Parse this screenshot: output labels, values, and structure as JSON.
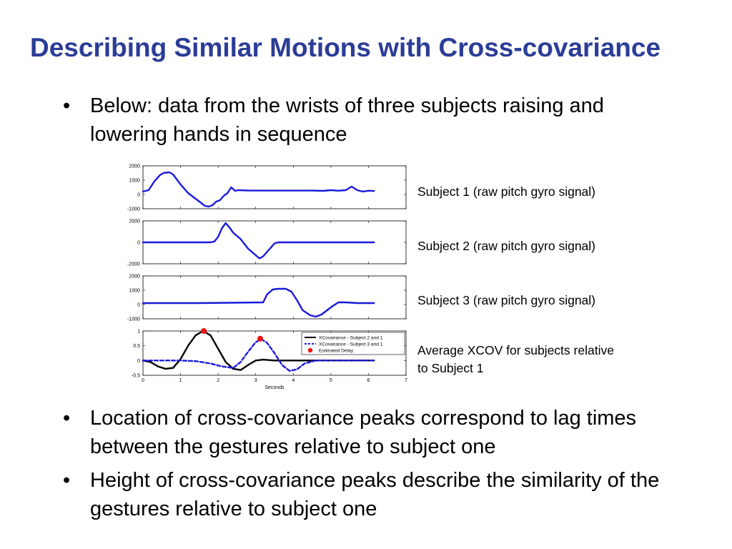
{
  "slide": {
    "title": "Describing Similar Motions with Cross-covariance",
    "bullets": [
      {
        "mark": "•",
        "text": "Below: data from the wrists of three subjects raising and lowering hands in sequence"
      },
      {
        "mark": "•",
        "text": "Location of cross-covariance peaks correspond to lag times between the gestures relative to subject one"
      },
      {
        "mark": "•",
        "text": "Height of cross-covariance peaks describe the similarity of the gestures relative to subject one"
      }
    ],
    "captions": [
      "Subject 1 (raw pitch gyro signal)",
      "Subject 2 (raw pitch gyro signal)",
      "Subject 3 (raw pitch gyro signal)",
      "Average XCOV for subjects relative to Subject 1"
    ]
  },
  "colors": {
    "title": "#2b3d97",
    "blue_trace": "#1a1adb",
    "black_trace": "#000000",
    "delay_marker": "#ee1111"
  },
  "chart_data": [
    {
      "type": "line",
      "title": "",
      "yticks": [
        "2000",
        "1000",
        "0",
        "-1000"
      ],
      "ylim": [
        -1000,
        2000
      ],
      "xlim": [
        0,
        7
      ],
      "series": [
        {
          "color": "#1a1adb",
          "x": [
            0,
            0.15,
            0.3,
            0.45,
            0.55,
            0.7,
            0.8,
            1.0,
            1.2,
            1.4,
            1.55,
            1.65,
            1.75,
            1.85,
            1.95,
            2.05,
            2.15,
            2.25,
            2.35,
            2.45,
            2.55,
            2.8,
            3.5,
            4.5,
            4.8,
            5.0,
            5.2,
            5.4,
            5.55,
            5.7,
            5.85,
            6.0,
            6.15
          ],
          "y": [
            200,
            300,
            900,
            1350,
            1500,
            1550,
            1400,
            700,
            100,
            -300,
            -600,
            -800,
            -850,
            -750,
            -500,
            -400,
            -100,
            100,
            500,
            250,
            300,
            270,
            270,
            270,
            250,
            300,
            260,
            300,
            550,
            300,
            200,
            260,
            240
          ]
        }
      ]
    },
    {
      "type": "line",
      "title": "",
      "yticks": [
        "2000",
        "0",
        "-2000"
      ],
      "ylim": [
        -2000,
        2000
      ],
      "xlim": [
        0,
        7
      ],
      "series": [
        {
          "color": "#1a1adb",
          "x": [
            0,
            1.0,
            1.8,
            1.9,
            2.0,
            2.1,
            2.2,
            2.3,
            2.4,
            2.6,
            2.8,
            3.0,
            3.1,
            3.2,
            3.35,
            3.5,
            3.6,
            4.0,
            5.5,
            6.15
          ],
          "y": [
            0,
            0,
            0,
            80,
            500,
            1300,
            1800,
            1400,
            900,
            300,
            -600,
            -1200,
            -1500,
            -1300,
            -700,
            -100,
            0,
            0,
            0,
            0
          ]
        }
      ]
    },
    {
      "type": "line",
      "title": "",
      "yticks": [
        "2000",
        "1000",
        "0",
        "-1000"
      ],
      "ylim": [
        -1000,
        2000
      ],
      "xlim": [
        0,
        7
      ],
      "series": [
        {
          "color": "#1a1adb",
          "x": [
            0,
            1.5,
            3.2,
            3.3,
            3.45,
            3.6,
            3.8,
            3.95,
            4.1,
            4.25,
            4.45,
            4.6,
            4.75,
            4.9,
            5.05,
            5.2,
            5.4,
            5.7,
            6.15
          ],
          "y": [
            100,
            100,
            150,
            700,
            1050,
            1100,
            1100,
            900,
            300,
            -400,
            -750,
            -850,
            -700,
            -400,
            -100,
            150,
            150,
            100,
            100
          ]
        }
      ]
    },
    {
      "type": "line",
      "title": "",
      "xlabel": "Seconds",
      "xlim": [
        0,
        7
      ],
      "ylim": [
        -0.5,
        1
      ],
      "xticks": [
        "0",
        "1",
        "2",
        "3",
        "4",
        "5",
        "6",
        "7"
      ],
      "yticks": [
        "1",
        "0.5",
        "0",
        "-0.5"
      ],
      "legend_position": "top-right",
      "series": [
        {
          "name": "XCovariance - Subject 2 and 1",
          "color": "#000000",
          "style": "solid",
          "x": [
            0,
            0.2,
            0.4,
            0.6,
            0.8,
            1.0,
            1.2,
            1.4,
            1.6,
            1.8,
            2.0,
            2.2,
            2.4,
            2.6,
            2.8,
            3.0,
            3.2,
            3.5,
            4.0,
            5.0,
            6.15
          ],
          "y": [
            0,
            -0.05,
            -0.2,
            -0.28,
            -0.25,
            0.05,
            0.5,
            0.85,
            1.0,
            0.85,
            0.4,
            -0.05,
            -0.28,
            -0.32,
            -0.15,
            0.0,
            0.03,
            0.0,
            0.0,
            0.0,
            0.0
          ]
        },
        {
          "name": "XCovariance - Subject 3 and 1",
          "color": "#1a1adb",
          "style": "dashed",
          "x": [
            0,
            0.6,
            1.0,
            1.4,
            1.8,
            2.1,
            2.4,
            2.6,
            2.8,
            3.0,
            3.15,
            3.3,
            3.5,
            3.7,
            3.9,
            4.1,
            4.3,
            4.6,
            4.9,
            5.2,
            6.15
          ],
          "y": [
            0,
            0.0,
            0.0,
            -0.02,
            -0.1,
            -0.2,
            -0.25,
            -0.05,
            0.3,
            0.62,
            0.72,
            0.6,
            0.25,
            -0.15,
            -0.35,
            -0.3,
            -0.1,
            0.0,
            0.0,
            0.0,
            0.0
          ]
        },
        {
          "name": "Estimated Delay",
          "color": "#ee1111",
          "style": "marker",
          "x": [
            1.62,
            3.12
          ],
          "y": [
            1.0,
            0.74
          ]
        }
      ]
    }
  ]
}
